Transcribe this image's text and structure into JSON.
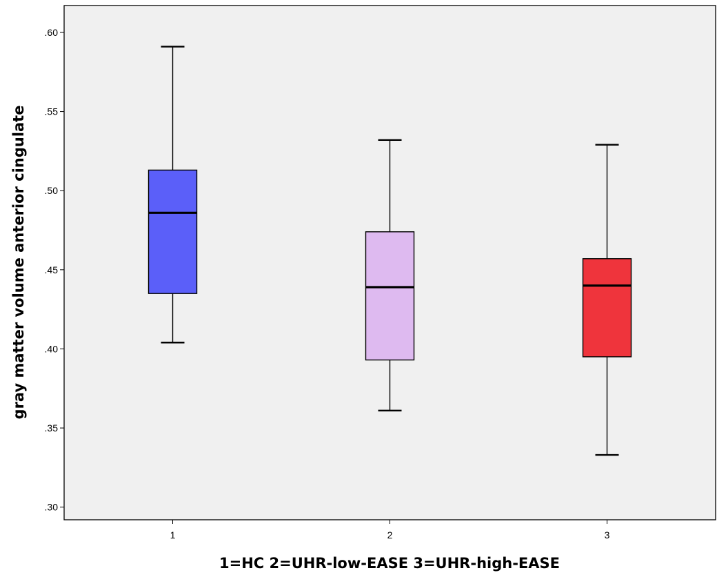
{
  "chart_data": {
    "type": "box",
    "categories": [
      "1",
      "2",
      "3"
    ],
    "xlabel": "1=HC 2=UHR-low-EASE 3=UHR-high-EASE",
    "ylabel": "gray matter volume anterior cingulate",
    "ylim": [
      0.292,
      0.617
    ],
    "y_ticks": [
      0.3,
      0.35,
      0.4,
      0.45,
      0.5,
      0.55,
      0.6
    ],
    "y_tick_labels": [
      ".30",
      ".35",
      ".40",
      ".45",
      ".50",
      ".55",
      ".60"
    ],
    "grid": false,
    "legend": "none",
    "background_color": "#f0f0f0",
    "boxes": [
      {
        "category": "1",
        "whisker_low": 0.404,
        "q1": 0.435,
        "median": 0.486,
        "q3": 0.513,
        "whisker_high": 0.591,
        "color": "#5b5ff9"
      },
      {
        "category": "2",
        "whisker_low": 0.361,
        "q1": 0.393,
        "median": 0.439,
        "q3": 0.474,
        "whisker_high": 0.532,
        "color": "#debaf0"
      },
      {
        "category": "3",
        "whisker_low": 0.333,
        "q1": 0.395,
        "median": 0.44,
        "q3": 0.457,
        "whisker_high": 0.529,
        "color": "#ef343c"
      }
    ]
  }
}
